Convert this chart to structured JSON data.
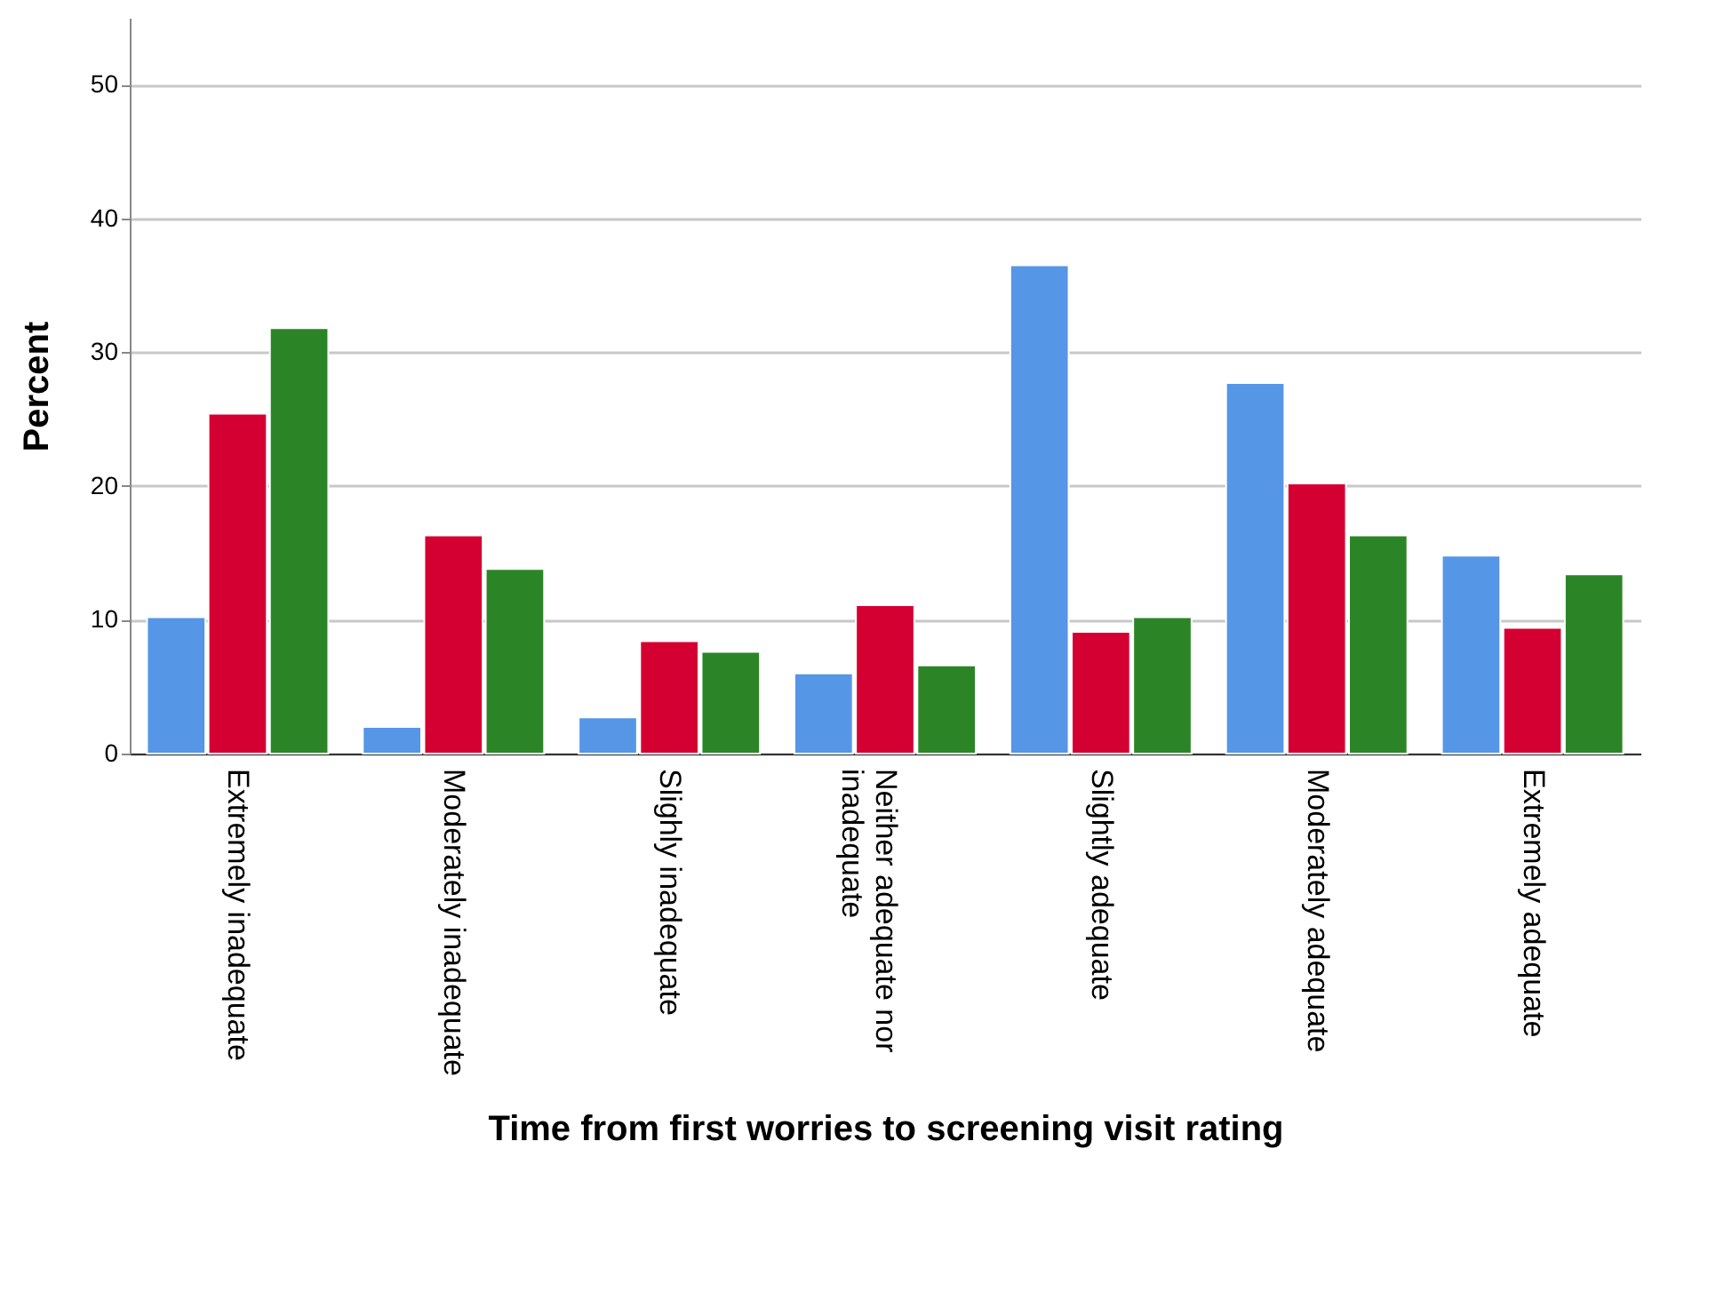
{
  "chart_data": {
    "type": "bar",
    "xlabel": "Time from first worries to screening visit rating",
    "ylabel": "Percent",
    "categories": [
      "Extremely inadequate",
      "Moderately inadequate",
      "Slighly inadequate",
      "Neither adequate nor inadequate",
      "Slightly adequate",
      "Moderately adequate",
      "Extremely adequate"
    ],
    "series": [
      {
        "color": "#5596e6",
        "values": [
          10.2,
          2.0,
          2.7,
          6.0,
          36.5,
          27.7,
          14.8
        ]
      },
      {
        "color": "#d50032",
        "values": [
          25.4,
          16.3,
          8.4,
          11.1,
          9.1,
          20.2,
          9.4
        ]
      },
      {
        "color": "#2b8527",
        "values": [
          31.8,
          13.8,
          7.6,
          6.6,
          10.2,
          16.3,
          13.4
        ]
      }
    ],
    "ylim": [
      0,
      55
    ],
    "yticks": [
      0,
      10,
      20,
      30,
      40,
      50
    ],
    "grid": "y",
    "legend": false
  }
}
